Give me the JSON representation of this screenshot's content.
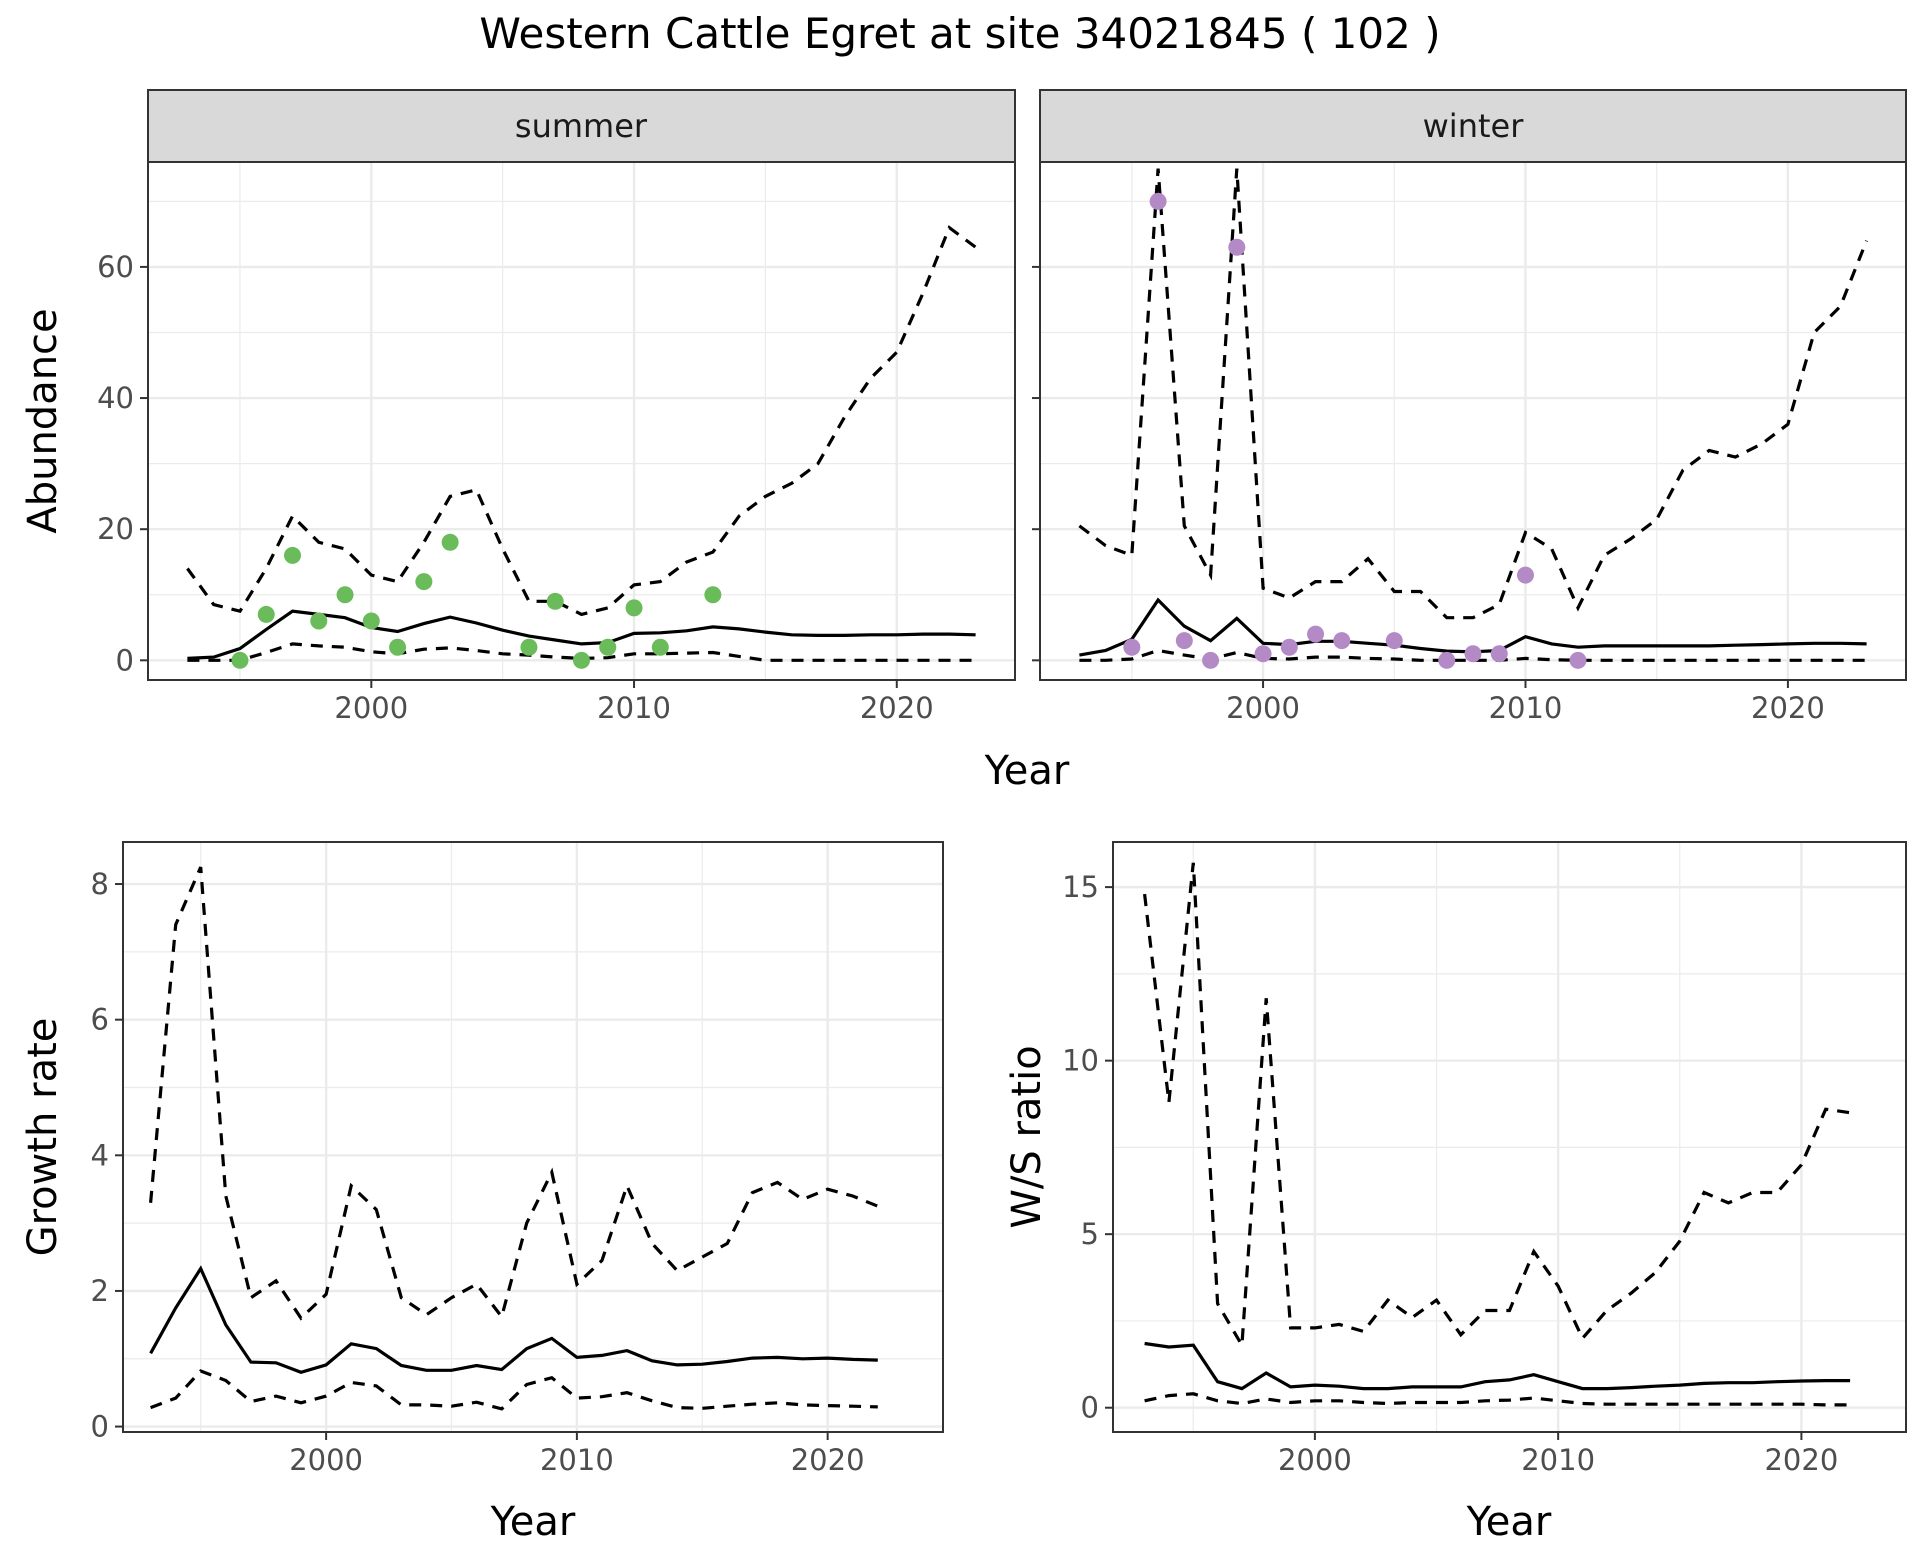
{
  "figure": {
    "title": "Western Cattle Egret at site 34021845 ( 102 )"
  },
  "colors": {
    "summer_points": "#6abc5a",
    "winter_points": "#b48ac6",
    "lines": "#000000",
    "grid": "#ebebeb",
    "strip_fill": "#d9d9d9"
  },
  "chart_data": [
    {
      "type": "line",
      "panel": "summer",
      "strip": "summer",
      "xlabel": "Year",
      "ylabel": "Abundance",
      "xlim": [
        1991.5,
        2024.5
      ],
      "ylim": [
        -3,
        76
      ],
      "xticks": [
        2000,
        2010,
        2020
      ],
      "xtick_labels": [
        "2000",
        "2010",
        "2020"
      ],
      "yticks": [
        0,
        20,
        40,
        60
      ],
      "ytick_labels": [
        "0",
        "20",
        "40",
        "60"
      ],
      "grid": true,
      "years": [
        1993,
        1994,
        1995,
        1996,
        1997,
        1998,
        1999,
        2000,
        2001,
        2002,
        2003,
        2004,
        2005,
        2006,
        2007,
        2008,
        2009,
        2010,
        2011,
        2012,
        2013,
        2014,
        2015,
        2016,
        2017,
        2018,
        2019,
        2020,
        2021,
        2022,
        2023
      ],
      "estimate": [
        0.3,
        0.5,
        1.8,
        4.7,
        7.5,
        7.0,
        6.5,
        5.0,
        4.4,
        5.6,
        6.6,
        5.7,
        4.6,
        3.7,
        3.1,
        2.5,
        2.7,
        4.1,
        4.2,
        4.5,
        5.1,
        4.8,
        4.3,
        3.9,
        3.8,
        3.8,
        3.9,
        3.9,
        4.0,
        4.0,
        3.9
      ],
      "lower": [
        0,
        0,
        0,
        1.2,
        2.5,
        2.2,
        2.0,
        1.3,
        1.0,
        1.7,
        1.9,
        1.5,
        1.0,
        0.8,
        0.5,
        0.3,
        0.4,
        1.0,
        1.0,
        1.1,
        1.2,
        0.6,
        0,
        0,
        0,
        0,
        0,
        0,
        0,
        0,
        0
      ],
      "upper": [
        14,
        8.5,
        7.5,
        14,
        22,
        18,
        17,
        13,
        12,
        18,
        25,
        26,
        17,
        9,
        9,
        7,
        8,
        11.5,
        12,
        15,
        16.5,
        22,
        25,
        27,
        30,
        37,
        43,
        47,
        56,
        66,
        63
      ],
      "points_x": [
        1995,
        1996,
        1997,
        1998,
        1999,
        2000,
        2001,
        2002,
        2003,
        2006,
        2007,
        2008,
        2009,
        2010,
        2011,
        2013
      ],
      "points_y": [
        0,
        7,
        16,
        6,
        10,
        6,
        2,
        12,
        18,
        2,
        9,
        0,
        2,
        8,
        2,
        10
      ]
    },
    {
      "type": "line",
      "panel": "winter",
      "strip": "winter",
      "xlabel": "Year",
      "ylabel": "Abundance",
      "xlim": [
        1991.5,
        2024.5
      ],
      "ylim": [
        -3,
        76
      ],
      "xticks": [
        2000,
        2010,
        2020
      ],
      "xtick_labels": [
        "2000",
        "2010",
        "2020"
      ],
      "yticks": [
        0,
        20,
        40,
        60
      ],
      "ytick_labels": [
        "0",
        "20",
        "40",
        "60"
      ],
      "grid": true,
      "years": [
        1993,
        1994,
        1995,
        1996,
        1997,
        1998,
        1999,
        2000,
        2001,
        2002,
        2003,
        2004,
        2005,
        2006,
        2007,
        2008,
        2009,
        2010,
        2011,
        2012,
        2013,
        2014,
        2015,
        2016,
        2017,
        2018,
        2019,
        2020,
        2021,
        2022,
        2023
      ],
      "estimate": [
        0.8,
        1.5,
        3.2,
        9.2,
        5.2,
        3.0,
        6.4,
        2.6,
        2.4,
        2.9,
        2.9,
        2.6,
        2.3,
        1.8,
        1.4,
        1.3,
        1.5,
        3.6,
        2.5,
        2.0,
        2.2,
        2.2,
        2.2,
        2.2,
        2.2,
        2.3,
        2.4,
        2.5,
        2.6,
        2.6,
        2.5
      ],
      "lower": [
        0,
        0,
        0.2,
        1.5,
        0.8,
        0.2,
        1.2,
        0.3,
        0.2,
        0.5,
        0.5,
        0.3,
        0.2,
        0,
        0,
        0,
        0,
        0.3,
        0.1,
        0,
        0,
        0,
        0,
        0,
        0,
        0,
        0,
        0,
        0,
        0,
        0
      ],
      "upper": [
        20.5,
        17.5,
        16,
        75,
        20.5,
        13,
        75,
        11,
        9.5,
        12,
        12,
        15.5,
        10.5,
        10.5,
        6.5,
        6.5,
        8.5,
        19.5,
        17,
        8,
        16,
        18.5,
        21.5,
        29,
        32,
        31,
        33,
        36,
        50,
        54,
        64
      ],
      "points_x": [
        1995,
        1996,
        1997,
        1998,
        1999,
        2000,
        2001,
        2002,
        2003,
        2005,
        2007,
        2008,
        2009,
        2010,
        2012
      ],
      "points_y": [
        2,
        70,
        3,
        0,
        63,
        1,
        2,
        4,
        3,
        3,
        0,
        1,
        1,
        13,
        0
      ]
    },
    {
      "type": "line",
      "panel": "growth",
      "xlabel": "Year",
      "ylabel": "Growth rate",
      "xlim": [
        1991.9,
        2024.6
      ],
      "ylim": [
        -0.08,
        8.62
      ],
      "xticks": [
        2000,
        2010,
        2020
      ],
      "xtick_labels": [
        "2000",
        "2010",
        "2020"
      ],
      "yticks": [
        0,
        2,
        4,
        6,
        8
      ],
      "ytick_labels": [
        "0",
        "2",
        "4",
        "6",
        "8"
      ],
      "grid": true,
      "years": [
        1993,
        1994,
        1995,
        1996,
        1997,
        1998,
        1999,
        2000,
        2001,
        2002,
        2003,
        2004,
        2005,
        2006,
        2007,
        2008,
        2009,
        2010,
        2011,
        2012,
        2013,
        2014,
        2015,
        2016,
        2017,
        2018,
        2019,
        2020,
        2021,
        2022
      ],
      "estimate": [
        1.08,
        1.75,
        2.33,
        1.5,
        0.95,
        0.94,
        0.8,
        0.91,
        1.22,
        1.15,
        0.9,
        0.83,
        0.83,
        0.9,
        0.84,
        1.15,
        1.3,
        1.02,
        1.05,
        1.12,
        0.97,
        0.91,
        0.92,
        0.96,
        1.01,
        1.02,
        1.0,
        1.01,
        0.99,
        0.98
      ],
      "lower": [
        0.28,
        0.42,
        0.82,
        0.68,
        0.37,
        0.45,
        0.35,
        0.45,
        0.65,
        0.6,
        0.32,
        0.32,
        0.3,
        0.36,
        0.26,
        0.62,
        0.72,
        0.42,
        0.44,
        0.5,
        0.38,
        0.28,
        0.27,
        0.3,
        0.33,
        0.35,
        0.32,
        0.31,
        0.3,
        0.29
      ],
      "upper": [
        3.3,
        7.4,
        8.25,
        3.4,
        1.9,
        2.15,
        1.6,
        1.95,
        3.55,
        3.2,
        1.9,
        1.65,
        1.9,
        2.1,
        1.62,
        3.0,
        3.75,
        2.1,
        2.45,
        3.55,
        2.7,
        2.3,
        2.5,
        2.7,
        3.45,
        3.6,
        3.35,
        3.5,
        3.4,
        3.25
      ]
    },
    {
      "type": "line",
      "panel": "ws_ratio",
      "xlabel": "Year",
      "ylabel": "W/S ratio",
      "xlim": [
        1991.7,
        2024.3
      ],
      "ylim": [
        -0.7,
        16.3
      ],
      "xticks": [
        2000,
        2010,
        2020
      ],
      "xtick_labels": [
        "2000",
        "2010",
        "2020"
      ],
      "yticks": [
        0,
        5,
        10,
        15
      ],
      "ytick_labels": [
        "0",
        "5",
        "10",
        "15"
      ],
      "grid": true,
      "years": [
        1993,
        1994,
        1995,
        1996,
        1997,
        1998,
        1999,
        2000,
        2001,
        2002,
        2003,
        2004,
        2005,
        2006,
        2007,
        2008,
        2009,
        2010,
        2011,
        2012,
        2013,
        2014,
        2015,
        2016,
        2017,
        2018,
        2019,
        2020,
        2021,
        2022
      ],
      "estimate": [
        1.85,
        1.75,
        1.8,
        0.75,
        0.55,
        1.0,
        0.6,
        0.65,
        0.62,
        0.55,
        0.55,
        0.6,
        0.6,
        0.6,
        0.75,
        0.8,
        0.95,
        0.75,
        0.55,
        0.55,
        0.58,
        0.62,
        0.65,
        0.7,
        0.72,
        0.72,
        0.75,
        0.77,
        0.78,
        0.78
      ],
      "lower": [
        0.2,
        0.35,
        0.4,
        0.2,
        0.12,
        0.25,
        0.15,
        0.2,
        0.2,
        0.15,
        0.12,
        0.15,
        0.15,
        0.15,
        0.2,
        0.22,
        0.28,
        0.2,
        0.12,
        0.1,
        0.1,
        0.1,
        0.1,
        0.1,
        0.1,
        0.1,
        0.1,
        0.1,
        0.08,
        0.08
      ],
      "upper": [
        14.8,
        8.8,
        15.7,
        3.0,
        1.8,
        11.8,
        2.3,
        2.3,
        2.4,
        2.2,
        3.1,
        2.6,
        3.1,
        2.1,
        2.8,
        2.8,
        4.5,
        3.5,
        2.0,
        2.8,
        3.3,
        3.9,
        4.8,
        6.2,
        5.9,
        6.2,
        6.2,
        7.0,
        8.6,
        8.5
      ]
    }
  ]
}
